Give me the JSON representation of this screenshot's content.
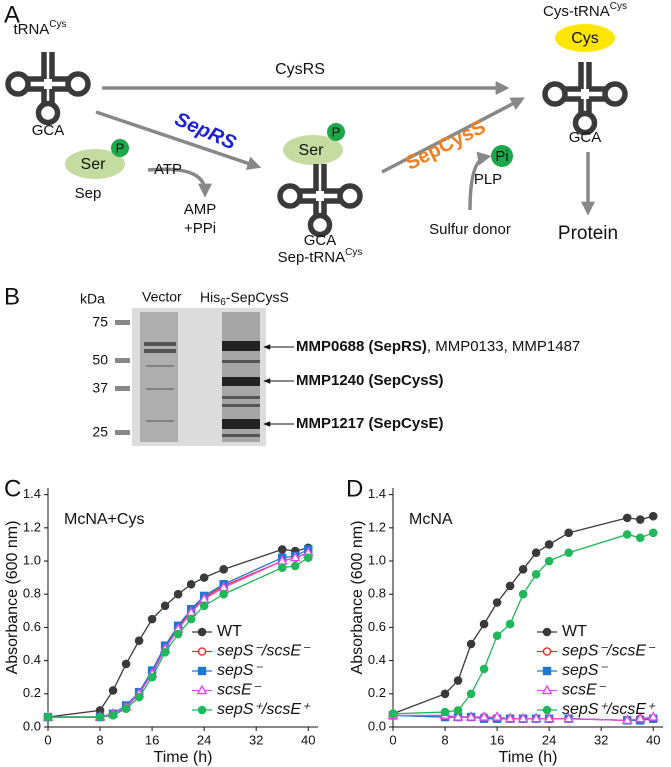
{
  "diagram": {
    "panel": "A",
    "trna_start": {
      "base": "tRNA",
      "sup": "Cys",
      "anticodon": "GCA"
    },
    "cysrs": "CysRS",
    "seprs": "SepRS",
    "ser_left": "Ser",
    "p_left": "P",
    "sep": "Sep",
    "atp": "ATP",
    "amp": "AMP",
    "ppi": "+PPi",
    "ser_mid": "Ser",
    "p_mid": "P",
    "sep_trna": {
      "base": "Sep-tRNA",
      "sup": "Cys",
      "anticodon": "GCA"
    },
    "sepcyss": "SepCysS",
    "pi": "Pi",
    "plp": "PLP",
    "sulfur_donor": "Sulfur donor",
    "cys_trna": {
      "base": "Cys-tRNA",
      "sup": "Cys",
      "anticodon": "GCA"
    },
    "cys": "Cys",
    "protein": "Protein"
  },
  "gel": {
    "panel": "B",
    "unit": "kDa",
    "lanes": [
      "Vector",
      {
        "pre": "His",
        "sub": "6",
        "post": "-SepCysS"
      }
    ],
    "markers": [
      "75",
      "50",
      "37",
      "25"
    ],
    "bands": [
      {
        "bold": "MMP0688 (SepRS)",
        "rest": ", MMP0133, MMP1487"
      },
      {
        "bold": "MMP1240 (SepCysS)"
      },
      {
        "bold": "MMP1217 (SepCysE)"
      }
    ]
  },
  "chart_data": [
    {
      "type": "line",
      "panel": "C",
      "annotation": "McNA+Cys",
      "x_label": "Time (h)",
      "y_label": "Absorbance (600 nm)",
      "x": [
        0,
        8,
        10,
        12,
        14,
        16,
        18,
        20,
        22,
        24,
        27,
        36,
        38,
        40
      ],
      "xlim": [
        0,
        41.5
      ],
      "xticks": [
        0,
        8,
        16,
        24,
        32,
        40
      ],
      "ylim": [
        0,
        1.44
      ],
      "yticks": [
        {
          "value": 0,
          "label": "0.0"
        },
        {
          "value": 0.2,
          "label": "0.2"
        },
        {
          "value": 0.4,
          "label": "0.4"
        },
        {
          "value": 0.6,
          "label": "0.6"
        },
        {
          "value": 0.8,
          "label": "0.8"
        },
        {
          "value": 1,
          "label": "1.0"
        },
        {
          "value": 1.2,
          "label": "1.2"
        },
        {
          "value": 1.4,
          "label": "1.4"
        }
      ],
      "legend": "lower right",
      "series": [
        {
          "name": "WT",
          "color": "#3a3a3a",
          "marker": "circle",
          "values": [
            0.06,
            0.1,
            0.22,
            0.38,
            0.52,
            0.65,
            0.73,
            0.8,
            0.86,
            0.9,
            0.95,
            1.07,
            1.06,
            1.08
          ]
        },
        {
          "name": "sepS⁻/scsE⁻",
          "color": "#e8302a",
          "marker": "circle-open",
          "values": [
            0.06,
            0.06,
            0.08,
            0.12,
            0.2,
            0.33,
            0.48,
            0.6,
            0.7,
            0.78,
            0.85,
            1.0,
            1.02,
            1.05
          ]
        },
        {
          "name": "sepS⁻",
          "color": "#1f77d0",
          "marker": "square",
          "values": [
            0.06,
            0.06,
            0.08,
            0.13,
            0.21,
            0.34,
            0.49,
            0.61,
            0.71,
            0.79,
            0.86,
            1.02,
            1.03,
            1.07
          ]
        },
        {
          "name": "scsE⁻",
          "color": "#e44ce4",
          "marker": "triangle-open",
          "values": [
            0.06,
            0.06,
            0.08,
            0.12,
            0.2,
            0.32,
            0.47,
            0.59,
            0.69,
            0.77,
            0.84,
            1.0,
            1.02,
            1.05
          ]
        },
        {
          "name": "sepS⁺/scsE⁺",
          "color": "#1fb85a",
          "marker": "circle",
          "values": [
            0.06,
            0.06,
            0.07,
            0.11,
            0.18,
            0.3,
            0.45,
            0.56,
            0.65,
            0.73,
            0.8,
            0.96,
            0.97,
            1.02
          ]
        }
      ]
    },
    {
      "type": "line",
      "panel": "D",
      "annotation": "McNA",
      "x_label": "Time (h)",
      "y_label": "Absorbance (600 nm)",
      "x": [
        0,
        8,
        10,
        12,
        14,
        16,
        18,
        20,
        22,
        24,
        27,
        36,
        38,
        40
      ],
      "xlim": [
        0,
        41.5
      ],
      "xticks": [
        0,
        8,
        16,
        24,
        32,
        40
      ],
      "ylim": [
        0,
        1.44
      ],
      "yticks": [
        {
          "value": 0,
          "label": "0.0"
        },
        {
          "value": 0.2,
          "label": "0.2"
        },
        {
          "value": 0.4,
          "label": "0.4"
        },
        {
          "value": 0.6,
          "label": "0.6"
        },
        {
          "value": 0.8,
          "label": "0.8"
        },
        {
          "value": 1,
          "label": "1.0"
        },
        {
          "value": 1.2,
          "label": "1.2"
        },
        {
          "value": 1.4,
          "label": "1.4"
        }
      ],
      "legend": "lower right",
      "series": [
        {
          "name": "WT",
          "color": "#3a3a3a",
          "marker": "circle",
          "values": [
            0.08,
            0.2,
            0.28,
            0.5,
            0.62,
            0.75,
            0.85,
            0.95,
            1.05,
            1.1,
            1.17,
            1.26,
            1.25,
            1.27
          ]
        },
        {
          "name": "sepS⁻/scsE⁻",
          "color": "#e8302a",
          "marker": "circle-open",
          "values": [
            0.07,
            0.06,
            0.06,
            0.06,
            0.06,
            0.05,
            0.05,
            0.05,
            0.05,
            0.05,
            0.05,
            0.04,
            0.05,
            0.05
          ]
        },
        {
          "name": "sepS⁻",
          "color": "#1f77d0",
          "marker": "square",
          "values": [
            0.07,
            0.06,
            0.06,
            0.06,
            0.05,
            0.05,
            0.05,
            0.05,
            0.05,
            0.05,
            0.05,
            0.04,
            0.04,
            0.05
          ]
        },
        {
          "name": "scsE⁻",
          "color": "#e44ce4",
          "marker": "triangle-open",
          "values": [
            0.07,
            0.07,
            0.06,
            0.06,
            0.06,
            0.06,
            0.05,
            0.05,
            0.05,
            0.05,
            0.05,
            0.04,
            0.05,
            0.06
          ]
        },
        {
          "name": "sepS⁺/scsE⁺",
          "color": "#1fb85a",
          "marker": "circle",
          "values": [
            0.08,
            0.09,
            0.1,
            0.2,
            0.35,
            0.55,
            0.62,
            0.8,
            0.92,
            1.0,
            1.05,
            1.16,
            1.14,
            1.17
          ]
        }
      ]
    }
  ]
}
